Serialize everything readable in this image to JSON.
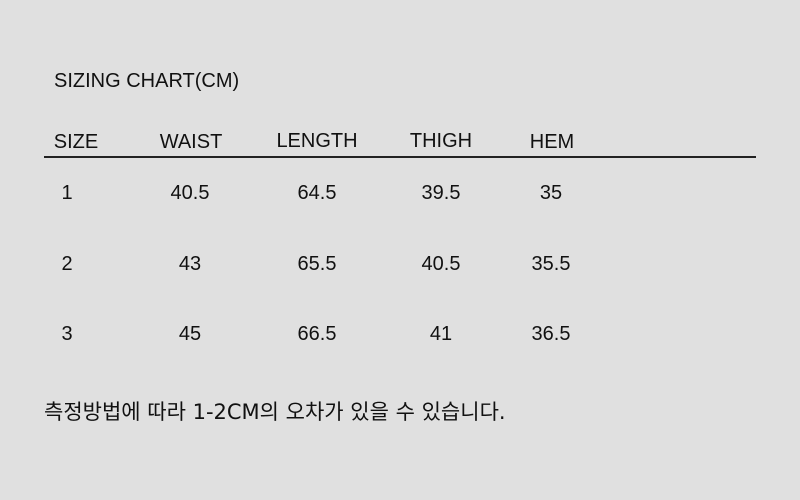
{
  "title": "SIZING CHART(CM)",
  "table": {
    "headers": [
      "SIZE",
      "WAIST",
      "LENGTH",
      "THIGH",
      "HEM"
    ],
    "rows": [
      [
        "1",
        "40.5",
        "64.5",
        "39.5",
        "35"
      ],
      [
        "2",
        "43",
        "65.5",
        "40.5",
        "35.5"
      ],
      [
        "3",
        "45",
        "66.5",
        "41",
        "36.5"
      ]
    ]
  },
  "note": "측정방법에 따라 1-2CM의 오차가 있을 수 있습니다."
}
